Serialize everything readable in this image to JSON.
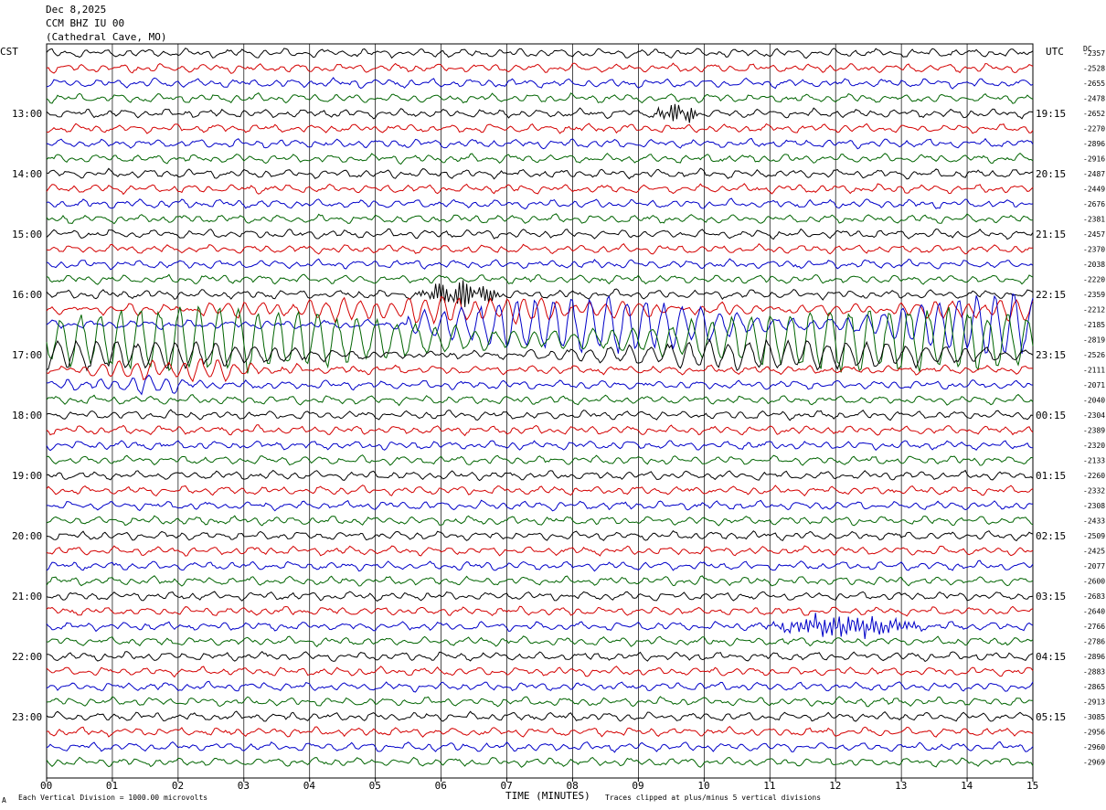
{
  "header": {
    "date": "Dec 8,2025",
    "station": "CCM BHZ IU 00",
    "location": "(Cathedral Cave, MO)"
  },
  "left_zone": "CST",
  "right_zone": "UTC",
  "dc_label": "DC",
  "footer": {
    "xaxis_title": "TIME (MINUTES)",
    "division_note": "Each Vertical Division = 1000.00 microvolts",
    "clip_note": "Traces clipped at plus/minus 5 vertical divisions",
    "corner_mark": "A"
  },
  "colors": {
    "trace_cycle": [
      "#000000",
      "#d40000",
      "#0000c8",
      "#006400"
    ],
    "grid": "#000000"
  },
  "chart_data": {
    "type": "line",
    "title": "",
    "xlabel": "TIME (MINUTES)",
    "ylabel": "",
    "x_ticks": [
      "00",
      "01",
      "02",
      "03",
      "04",
      "05",
      "06",
      "07",
      "08",
      "09",
      "10",
      "11",
      "12",
      "13",
      "14",
      "15"
    ],
    "xlim": [
      0,
      15
    ],
    "minutes_per_trace": 15,
    "trace_count": 48,
    "left_hour_labels": [
      "13:00",
      "14:00",
      "15:00",
      "16:00",
      "17:00",
      "18:00",
      "19:00",
      "20:00",
      "21:00",
      "22:00",
      "23:00"
    ],
    "right_hour_labels": [
      "19:15",
      "20:15",
      "21:15",
      "22:15",
      "23:15",
      "00:15",
      "01:15",
      "02:15",
      "03:15",
      "04:15",
      "05:15"
    ],
    "hour_label_first_trace": 4,
    "traces_per_hour": 4,
    "dc_offsets": [
      "-2357",
      "-2528",
      "-2655",
      "-2478",
      "-2652",
      "-2270",
      "-2896",
      "-2916",
      "-2487",
      "-2449",
      "-2676",
      "-2381",
      "-2457",
      "-2370",
      "-2038",
      "-2220",
      "-2359",
      "-2212",
      "-2185",
      "-2819",
      "-2526",
      "-2111",
      "-2071",
      "-2040",
      "-2304",
      "-2389",
      "-2320",
      "-2133",
      "-2260",
      "-2332",
      "-2308",
      "-2433",
      "-2509",
      "-2425",
      "-2077",
      "-2600",
      "-2683",
      "-2640",
      "-2766",
      "-2786",
      "-2896",
      "-2883",
      "-2865",
      "-2913",
      "-3085",
      "-2956",
      "-2960",
      "-2969"
    ],
    "events": [
      {
        "trace": 4,
        "start_min": 9.2,
        "end_min": 10.0,
        "amp": 9,
        "period_min": 0.05
      },
      {
        "trace": 16,
        "start_min": 5.6,
        "end_min": 7.0,
        "amp": 13,
        "period_min": 0.06
      },
      {
        "trace": 17,
        "start_min": 0.5,
        "end_min": 15,
        "amp": 11,
        "period_min": 0.25
      },
      {
        "trace": 18,
        "start_min": 5.5,
        "end_min": 15,
        "amp": 28,
        "period_min": 0.28
      },
      {
        "trace": 19,
        "start_min": 0.0,
        "end_min": 15,
        "amp": 30,
        "period_min": 0.3
      },
      {
        "trace": 20,
        "start_min": 0.0,
        "end_min": 15,
        "amp": 16,
        "period_min": 0.3
      },
      {
        "trace": 21,
        "start_min": 0.0,
        "end_min": 4.0,
        "amp": 9,
        "period_min": 0.25
      },
      {
        "trace": 22,
        "start_min": 0.0,
        "end_min": 3.0,
        "amp": 7,
        "period_min": 0.25
      },
      {
        "trace": 38,
        "start_min": 10.9,
        "end_min": 13.5,
        "amp": 10,
        "period_min": 0.02
      }
    ]
  }
}
